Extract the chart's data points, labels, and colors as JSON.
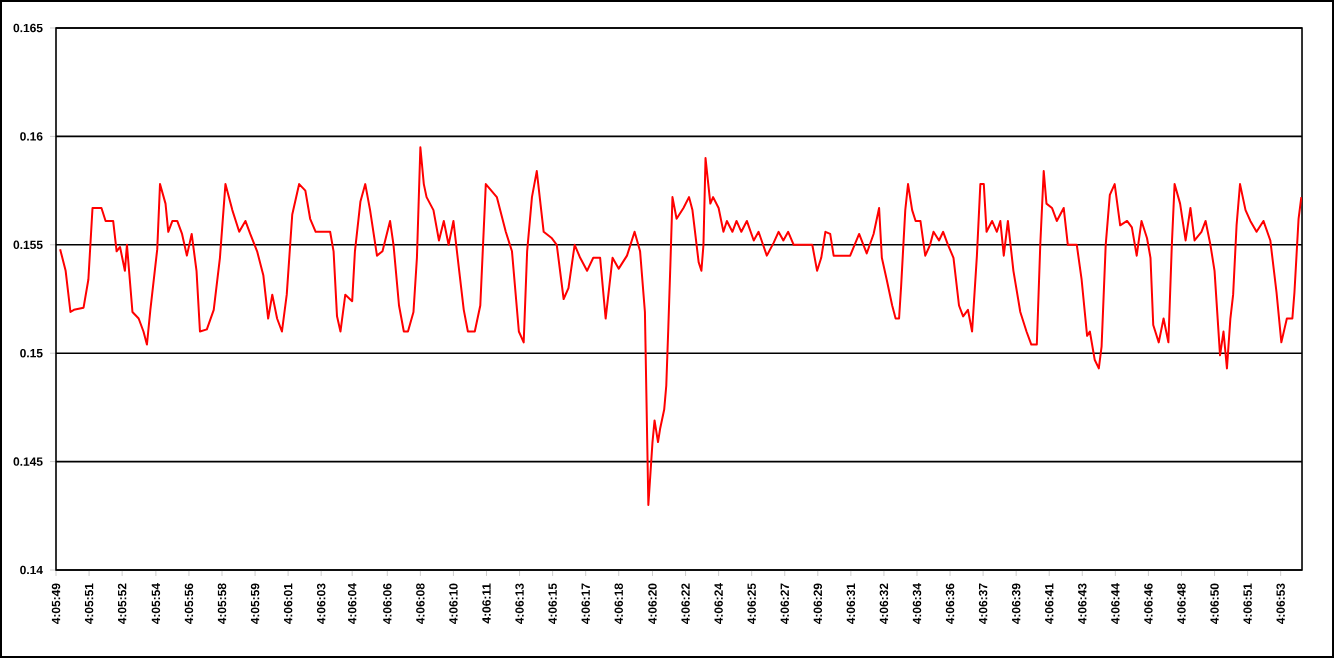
{
  "chart_data": {
    "type": "line",
    "color": "#ff0000",
    "grid": "y",
    "ylim": [
      0.14,
      0.165
    ],
    "yticks": [
      0.14,
      0.145,
      0.15,
      0.155,
      0.16,
      0.165
    ],
    "xlim": [
      4.09694,
      4.11503
    ],
    "xticks": [
      {
        "value": 4.09694,
        "label": "4:05:49"
      },
      {
        "value": 4.09742,
        "label": "4:05:51"
      },
      {
        "value": 4.0979,
        "label": "4:05:52"
      },
      {
        "value": 4.09839,
        "label": "4:05:54"
      },
      {
        "value": 4.09887,
        "label": "4:05:56"
      },
      {
        "value": 4.09935,
        "label": "4:05:58"
      },
      {
        "value": 4.09983,
        "label": "4:05:59"
      },
      {
        "value": 4.10031,
        "label": "4:06:01"
      },
      {
        "value": 4.10079,
        "label": "4:06:03"
      },
      {
        "value": 4.10124,
        "label": "4:06:04"
      },
      {
        "value": 4.10175,
        "label": "4:06:06"
      },
      {
        "value": 4.10223,
        "label": "4:06:08"
      },
      {
        "value": 4.10271,
        "label": "4:06:10"
      },
      {
        "value": 4.10319,
        "label": "4:06:11"
      },
      {
        "value": 4.10367,
        "label": "4:06:13"
      },
      {
        "value": 4.10415,
        "label": "4:06:15"
      },
      {
        "value": 4.10463,
        "label": "4:06:17"
      },
      {
        "value": 4.10511,
        "label": "4:06:18"
      },
      {
        "value": 4.1056,
        "label": "4:06:20"
      },
      {
        "value": 4.10608,
        "label": "4:06:22"
      },
      {
        "value": 4.10656,
        "label": "4:06:24"
      },
      {
        "value": 4.10704,
        "label": "4:06:25"
      },
      {
        "value": 4.10752,
        "label": "4:06:27"
      },
      {
        "value": 4.108,
        "label": "4:06:29"
      },
      {
        "value": 4.10848,
        "label": "4:06:31"
      },
      {
        "value": 4.10896,
        "label": "4:06:32"
      },
      {
        "value": 4.10944,
        "label": "4:06:34"
      },
      {
        "value": 4.10992,
        "label": "4:06:36"
      },
      {
        "value": 4.1104,
        "label": "4:06:37"
      },
      {
        "value": 4.11088,
        "label": "4:06:39"
      },
      {
        "value": 4.11136,
        "label": "4:06:41"
      },
      {
        "value": 4.11184,
        "label": "4:06:43"
      },
      {
        "value": 4.11232,
        "label": "4:06:44"
      },
      {
        "value": 4.1128,
        "label": "4:06:46"
      },
      {
        "value": 4.11328,
        "label": "4:06:48"
      },
      {
        "value": 4.11376,
        "label": "4:06:50"
      },
      {
        "value": 4.11424,
        "label": "4:06:51"
      },
      {
        "value": 4.11472,
        "label": "4:06:53"
      }
    ],
    "x": [
      4.097,
      4.09708,
      4.09715,
      4.0972,
      4.09734,
      4.09741,
      4.09747,
      4.0976,
      4.09766,
      4.09777,
      4.09782,
      4.09787,
      4.09794,
      4.09797,
      4.09805,
      4.09814,
      4.09821,
      4.09826,
      4.09831,
      4.09841,
      4.09845,
      4.09853,
      4.09857,
      4.09863,
      4.0987,
      4.09877,
      4.09884,
      4.09891,
      4.09898,
      4.09903,
      4.09913,
      4.09923,
      4.09932,
      4.0994,
      4.0995,
      4.0996,
      4.09969,
      4.09976,
      4.09986,
      4.09995,
      4.10002,
      4.10008,
      4.10015,
      4.10022,
      4.10029,
      4.10037,
      4.10047,
      4.10056,
      4.10063,
      4.10071,
      4.10092,
      4.10097,
      4.10102,
      4.10107,
      4.10114,
      4.10124,
      4.10128,
      4.10136,
      4.10143,
      4.1015,
      4.1016,
      4.10168,
      4.10179,
      4.10184,
      4.10192,
      4.10199,
      4.10205,
      4.10213,
      4.10218,
      4.10223,
      4.10228,
      4.10232,
      4.10242,
      4.1025,
      4.10257,
      4.10264,
      4.10271,
      4.10279,
      4.10286,
      4.10292,
      4.10302,
      4.1031,
      4.10318,
      4.10334,
      4.10347,
      4.10356,
      4.10366,
      4.10373,
      4.10378,
      4.10385,
      4.10392,
      4.10402,
      4.10414,
      4.10421,
      4.10431,
      4.10438,
      4.10447,
      4.10455,
      4.10465,
      4.10474,
      4.10484,
      4.10492,
      4.10502,
      4.10511,
      4.10523,
      4.10534,
      4.10542,
      4.10549,
      4.10554,
      4.1056,
      4.10563,
      4.10568,
      4.10571,
      4.10577,
      4.1058,
      4.10583,
      4.10586,
      4.10589,
      4.10595,
      4.10605,
      4.10613,
      4.10618,
      4.10627,
      4.10631,
      4.10634,
      4.10637,
      4.10641,
      4.10644,
      4.10648,
      4.10656,
      4.10663,
      4.10668,
      4.10676,
      4.10682,
      4.10689,
      4.10697,
      4.10707,
      4.10714,
      4.10726,
      4.10736,
      4.10743,
      4.1075,
      4.10757,
      4.10765,
      4.10792,
      4.10799,
      4.10805,
      4.10811,
      4.10818,
      4.10823,
      4.10847,
      4.1086,
      4.10871,
      4.10881,
      4.10889,
      4.10893,
      4.109,
      4.10908,
      4.10913,
      4.10918,
      4.10921,
      4.10927,
      4.10931,
      4.10937,
      4.10942,
      4.10949,
      4.10956,
      4.10963,
      4.10968,
      4.10976,
      4.10982,
      4.10989,
      4.10997,
      4.11005,
      4.11011,
      4.11018,
      4.11024,
      4.11031,
      4.11036,
      4.11041,
      4.11045,
      4.11053,
      4.1106,
      4.11065,
      4.1107,
      4.11076,
      4.11084,
      4.11094,
      4.11103,
      4.1111,
      4.11118,
      4.11123,
      4.11128,
      4.11132,
      4.1114,
      4.11147,
      4.11157,
      4.11163,
      4.11176,
      4.11183,
      4.11191,
      4.11195,
      4.11202,
      4.11208,
      4.11212,
      4.11218,
      4.11224,
      4.11231,
      4.11239,
      4.11249,
      4.11256,
      4.11263,
      4.1127,
      4.11278,
      4.11283,
      4.11287,
      4.11295,
      4.11302,
      4.11309,
      4.11314,
      4.11318,
      4.11326,
      4.11334,
      4.11341,
      4.11347,
      4.11357,
      4.11363,
      4.1137,
      4.11376,
      4.11384,
      4.11389,
      4.11394,
      4.11399,
      4.11403,
      4.11408,
      4.11413,
      4.11421,
      4.11428,
      4.11437,
      4.11447,
      4.11457,
      4.11466,
      4.11473,
      4.11481,
      4.11489,
      4.11492,
      4.11498,
      4.11502
    ],
    "values": [
      0.1548,
      0.1538,
      0.1519,
      0.152,
      0.1521,
      0.1534,
      0.1567,
      0.1567,
      0.1561,
      0.1561,
      0.1547,
      0.1549,
      0.1538,
      0.155,
      0.1519,
      0.1516,
      0.151,
      0.1504,
      0.152,
      0.1548,
      0.1578,
      0.1569,
      0.1556,
      0.1561,
      0.1561,
      0.1555,
      0.1545,
      0.1555,
      0.1538,
      0.151,
      0.1511,
      0.152,
      0.1544,
      0.1578,
      0.1566,
      0.1556,
      0.1561,
      0.1555,
      0.1547,
      0.1536,
      0.1516,
      0.1527,
      0.1516,
      0.151,
      0.1527,
      0.1564,
      0.1578,
      0.1575,
      0.1562,
      0.1556,
      0.1556,
      0.1547,
      0.1517,
      0.151,
      0.1527,
      0.1524,
      0.1547,
      0.157,
      0.1578,
      0.1566,
      0.1545,
      0.1547,
      0.1561,
      0.155,
      0.1522,
      0.151,
      0.151,
      0.1519,
      0.1544,
      0.1595,
      0.1578,
      0.1572,
      0.1566,
      0.1552,
      0.1561,
      0.155,
      0.1561,
      0.1539,
      0.152,
      0.151,
      0.151,
      0.1522,
      0.1578,
      0.1572,
      0.1556,
      0.1547,
      0.151,
      0.1505,
      0.1547,
      0.1572,
      0.1584,
      0.1556,
      0.1553,
      0.155,
      0.1525,
      0.153,
      0.155,
      0.1544,
      0.1538,
      0.1544,
      0.1544,
      0.1516,
      0.1544,
      0.1539,
      0.1545,
      0.1556,
      0.1547,
      0.1519,
      0.143,
      0.1459,
      0.1469,
      0.1459,
      0.1465,
      0.1474,
      0.1485,
      0.1512,
      0.1541,
      0.1572,
      0.1562,
      0.1567,
      0.1572,
      0.1566,
      0.1542,
      0.1538,
      0.155,
      0.159,
      0.1578,
      0.1569,
      0.1572,
      0.1567,
      0.1556,
      0.1561,
      0.1556,
      0.1561,
      0.1556,
      0.1561,
      0.1552,
      0.1556,
      0.1545,
      0.1551,
      0.1556,
      0.1552,
      0.1556,
      0.155,
      0.155,
      0.1538,
      0.1544,
      0.1556,
      0.1555,
      0.1545,
      0.1545,
      0.1555,
      0.1546,
      0.1555,
      0.1567,
      0.1544,
      0.1534,
      0.1522,
      0.1516,
      0.1516,
      0.1531,
      0.1566,
      0.1578,
      0.1566,
      0.1561,
      0.1561,
      0.1545,
      0.155,
      0.1556,
      0.1552,
      0.1556,
      0.155,
      0.1544,
      0.1522,
      0.1517,
      0.152,
      0.151,
      0.1545,
      0.1578,
      0.1578,
      0.1556,
      0.1561,
      0.1556,
      0.1561,
      0.1545,
      0.1561,
      0.1538,
      0.1519,
      0.151,
      0.1504,
      0.1504,
      0.155,
      0.1584,
      0.1569,
      0.1567,
      0.1561,
      0.1567,
      0.155,
      0.155,
      0.1534,
      0.1508,
      0.151,
      0.1497,
      0.1493,
      0.1503,
      0.155,
      0.1573,
      0.1578,
      0.1559,
      0.1561,
      0.1558,
      0.1545,
      0.1561,
      0.1553,
      0.1544,
      0.1513,
      0.1505,
      0.1516,
      0.1505,
      0.155,
      0.1578,
      0.1569,
      0.1552,
      0.1567,
      0.1552,
      0.1556,
      0.1561,
      0.155,
      0.1538,
      0.1499,
      0.151,
      0.1493,
      0.1516,
      0.1527,
      0.1559,
      0.1578,
      0.1566,
      0.1561,
      0.1556,
      0.1561,
      0.1552,
      0.1528,
      0.1505,
      0.1516,
      0.1516,
      0.1528,
      0.1562,
      0.1572
    ]
  }
}
